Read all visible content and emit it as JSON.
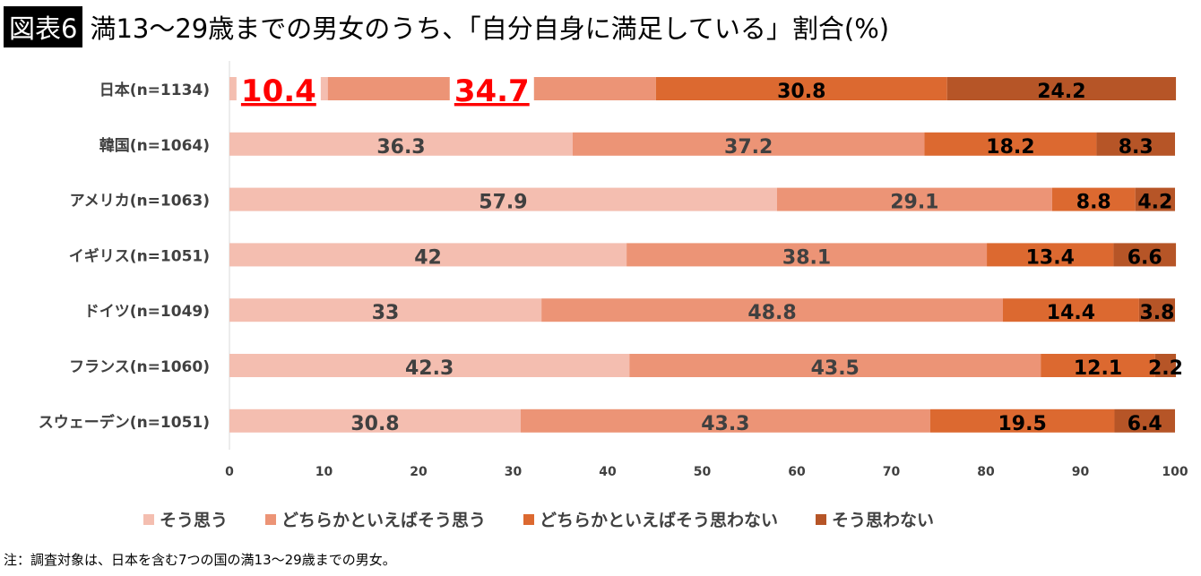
{
  "title": {
    "badge": "図表6",
    "text": "満13〜29歳までの男女のうち、「自分自身に満足している」割合(%)"
  },
  "chart_data": {
    "type": "bar",
    "orientation": "horizontal",
    "stacked": true,
    "categories": [
      "日本(n=1134)",
      "韓国(n=1064)",
      "アメリカ(n=1063)",
      "イギリス(n=1051)",
      "ドイツ(n=1049)",
      "フランス(n=1060)",
      "スウェーデン(n=1051)"
    ],
    "series": [
      {
        "name": "そう思う",
        "color": "#F4BEB0",
        "values": [
          10.4,
          36.3,
          57.9,
          42,
          33,
          42.3,
          30.8
        ]
      },
      {
        "name": "どちらかといえばそう思う",
        "color": "#EC9476",
        "values": [
          34.7,
          37.2,
          29.1,
          38.1,
          48.8,
          43.5,
          43.3
        ]
      },
      {
        "name": "どちらかといえばそう思わない",
        "color": "#DC6930",
        "values": [
          30.8,
          18.2,
          8.8,
          13.4,
          14.4,
          12.1,
          19.5
        ]
      },
      {
        "name": "そう思わない",
        "color": "#B65527",
        "values": [
          24.2,
          8.3,
          4.2,
          6.6,
          3.8,
          2.2,
          6.4
        ]
      }
    ],
    "xlim": [
      0,
      100
    ],
    "xticks": [
      "0",
      "10",
      "20",
      "30",
      "40",
      "50",
      "60",
      "70",
      "80",
      "90",
      "100"
    ],
    "highlight_color": "#FF0000",
    "legend": "bottom"
  },
  "note": "注：調査対象は、日本を含む7つの国の満13〜29歳までの男女。"
}
